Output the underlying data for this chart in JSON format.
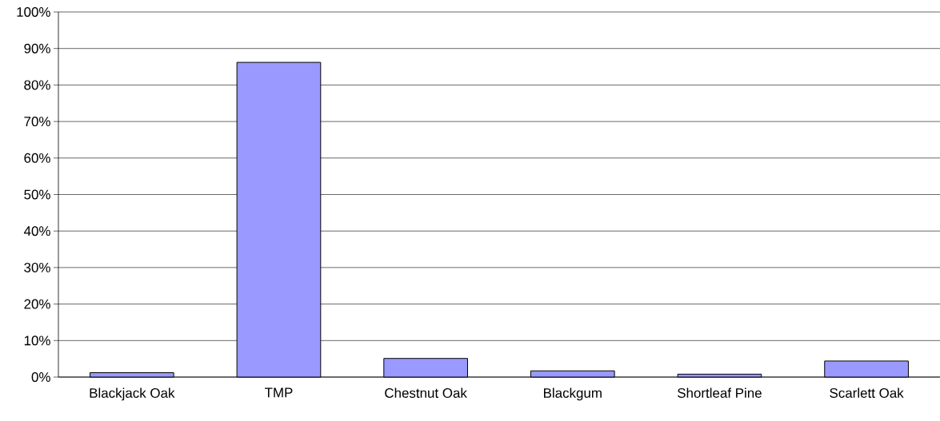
{
  "chart_data": {
    "type": "bar",
    "categories": [
      "Blackjack Oak",
      "TMP",
      "Chestnut Oak",
      "Blackgum",
      "Shortleaf Pine",
      "Scarlett Oak"
    ],
    "values": [
      1.2,
      86.2,
      5.1,
      1.7,
      0.8,
      4.4
    ],
    "color": "#9999ff",
    "ylim": [
      0,
      100
    ],
    "yticks": [
      {
        "value": 0,
        "label": "0%"
      },
      {
        "value": 10,
        "label": "10%"
      },
      {
        "value": 20,
        "label": "20%"
      },
      {
        "value": 30,
        "label": "30%"
      },
      {
        "value": 40,
        "label": "40%"
      },
      {
        "value": 50,
        "label": "50%"
      },
      {
        "value": 60,
        "label": "60%"
      },
      {
        "value": 70,
        "label": "70%"
      },
      {
        "value": 80,
        "label": "80%"
      },
      {
        "value": 90,
        "label": "90%"
      },
      {
        "value": 100,
        "label": "100%"
      }
    ],
    "grid": "y"
  }
}
